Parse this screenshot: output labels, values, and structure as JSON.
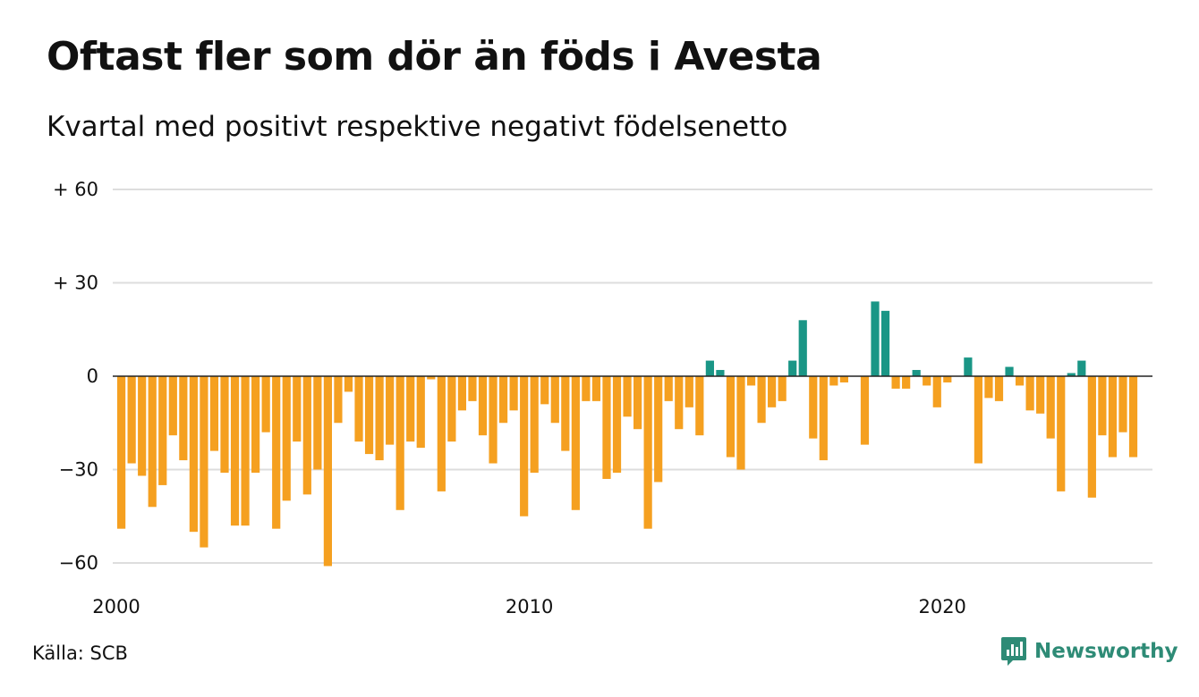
{
  "title": "Oftast fler som dör än föds i Avesta",
  "subtitle": "Kvartal med positivt respektive negativt födelsenetto",
  "source": "Källa: SCB",
  "brand": {
    "name": "Newsworthy",
    "icon": "newsworthy-logo-icon",
    "color": "#2e8b76"
  },
  "colors": {
    "positive": "#1a9686",
    "negative": "#f5a020",
    "grid": "#dddddd",
    "zero_line": "#222222"
  },
  "chart_data": {
    "type": "bar",
    "title": "Oftast fler som dör än föds i Avesta",
    "subtitle": "Kvartal med positivt respektive negativt födelsenetto",
    "xlabel": "",
    "ylabel": "",
    "ylim": [
      -60,
      60
    ],
    "y_ticks": [
      {
        "value": 60,
        "label": "+ 60"
      },
      {
        "value": 30,
        "label": "+ 30"
      },
      {
        "value": 0,
        "label": "0"
      },
      {
        "value": -30,
        "label": "−30"
      },
      {
        "value": -60,
        "label": "−60"
      }
    ],
    "x_ticks": [
      {
        "index": 0,
        "label": "2000"
      },
      {
        "index": 40,
        "label": "2010"
      },
      {
        "index": 80,
        "label": "2020"
      }
    ],
    "grid": true,
    "legend": "none",
    "start": "2000 Q1",
    "frequency": "quarter",
    "values": [
      -49,
      -28,
      -32,
      -42,
      -35,
      -19,
      -27,
      -50,
      -55,
      -24,
      -31,
      -48,
      -48,
      -31,
      -18,
      -49,
      -40,
      -21,
      -38,
      -30,
      -61,
      -15,
      -5,
      -21,
      -25,
      -27,
      -22,
      -43,
      -21,
      -23,
      -1,
      -37,
      -21,
      -11,
      -8,
      -19,
      -28,
      -15,
      -11,
      -45,
      -31,
      -9,
      -15,
      -24,
      -43,
      -8,
      -8,
      -33,
      -31,
      -13,
      -17,
      -49,
      -34,
      -8,
      -17,
      -10,
      -19,
      5,
      2,
      -26,
      -30,
      -3,
      -15,
      -10,
      -8,
      5,
      18,
      -20,
      -27,
      -3,
      -2,
      0,
      -22,
      24,
      21,
      -4,
      -4,
      2,
      -3,
      -10,
      -2,
      0,
      6,
      -28,
      -7,
      -8,
      3,
      -3,
      -11,
      -12,
      -20,
      -37,
      1,
      5,
      -39,
      -19,
      -26,
      -18,
      -26
    ]
  }
}
